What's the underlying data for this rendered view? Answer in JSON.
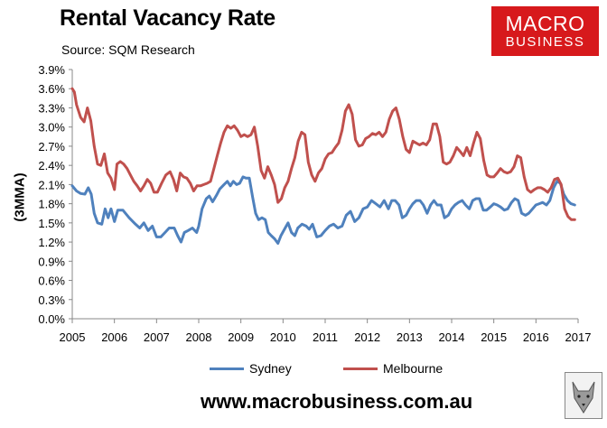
{
  "chart_data": {
    "type": "line",
    "title": "Rental Vacancy Rate",
    "subtitle": "Source: SQM Research",
    "ylabel": "(3MMA)",
    "xlabel": "",
    "ylim": [
      0,
      3.9
    ],
    "yticks": [
      "0.0%",
      "0.3%",
      "0.6%",
      "0.9%",
      "1.2%",
      "1.5%",
      "1.8%",
      "2.1%",
      "2.4%",
      "2.7%",
      "3.0%",
      "3.3%",
      "3.6%",
      "3.9%"
    ],
    "xticks": [
      "2005",
      "2006",
      "2007",
      "2008",
      "2009",
      "2010",
      "2011",
      "2012",
      "2013",
      "2014",
      "2015",
      "2016",
      "2017"
    ],
    "xlim": [
      2005,
      2017
    ],
    "legend_position": "bottom",
    "series": [
      {
        "name": "Sydney",
        "color": "#4f81bd",
        "points": [
          [
            2005.0,
            2.08
          ],
          [
            2005.1,
            2.0
          ],
          [
            2005.2,
            1.96
          ],
          [
            2005.3,
            1.95
          ],
          [
            2005.38,
            2.05
          ],
          [
            2005.45,
            1.95
          ],
          [
            2005.52,
            1.65
          ],
          [
            2005.6,
            1.5
          ],
          [
            2005.7,
            1.48
          ],
          [
            2005.78,
            1.72
          ],
          [
            2005.85,
            1.58
          ],
          [
            2005.92,
            1.72
          ],
          [
            2006.0,
            1.52
          ],
          [
            2006.08,
            1.7
          ],
          [
            2006.2,
            1.7
          ],
          [
            2006.35,
            1.58
          ],
          [
            2006.5,
            1.48
          ],
          [
            2006.6,
            1.42
          ],
          [
            2006.7,
            1.5
          ],
          [
            2006.8,
            1.38
          ],
          [
            2006.9,
            1.45
          ],
          [
            2007.0,
            1.28
          ],
          [
            2007.1,
            1.28
          ],
          [
            2007.2,
            1.35
          ],
          [
            2007.3,
            1.42
          ],
          [
            2007.42,
            1.42
          ],
          [
            2007.5,
            1.3
          ],
          [
            2007.58,
            1.2
          ],
          [
            2007.66,
            1.35
          ],
          [
            2007.75,
            1.38
          ],
          [
            2007.85,
            1.42
          ],
          [
            2007.95,
            1.35
          ],
          [
            2008.0,
            1.45
          ],
          [
            2008.08,
            1.72
          ],
          [
            2008.18,
            1.88
          ],
          [
            2008.25,
            1.92
          ],
          [
            2008.33,
            1.83
          ],
          [
            2008.42,
            1.93
          ],
          [
            2008.5,
            2.03
          ],
          [
            2008.6,
            2.1
          ],
          [
            2008.68,
            2.15
          ],
          [
            2008.75,
            2.08
          ],
          [
            2008.82,
            2.15
          ],
          [
            2008.9,
            2.1
          ],
          [
            2008.97,
            2.12
          ],
          [
            2009.05,
            2.22
          ],
          [
            2009.12,
            2.2
          ],
          [
            2009.2,
            2.2
          ],
          [
            2009.28,
            1.9
          ],
          [
            2009.35,
            1.65
          ],
          [
            2009.42,
            1.55
          ],
          [
            2009.5,
            1.58
          ],
          [
            2009.58,
            1.55
          ],
          [
            2009.65,
            1.35
          ],
          [
            2009.72,
            1.3
          ],
          [
            2009.8,
            1.25
          ],
          [
            2009.88,
            1.18
          ],
          [
            2009.95,
            1.3
          ],
          [
            2010.05,
            1.42
          ],
          [
            2010.12,
            1.5
          ],
          [
            2010.2,
            1.35
          ],
          [
            2010.28,
            1.3
          ],
          [
            2010.35,
            1.42
          ],
          [
            2010.45,
            1.48
          ],
          [
            2010.55,
            1.45
          ],
          [
            2010.62,
            1.4
          ],
          [
            2010.7,
            1.48
          ],
          [
            2010.8,
            1.28
          ],
          [
            2010.9,
            1.3
          ],
          [
            2011.0,
            1.38
          ],
          [
            2011.1,
            1.45
          ],
          [
            2011.2,
            1.48
          ],
          [
            2011.3,
            1.42
          ],
          [
            2011.4,
            1.45
          ],
          [
            2011.5,
            1.62
          ],
          [
            2011.6,
            1.68
          ],
          [
            2011.7,
            1.52
          ],
          [
            2011.8,
            1.58
          ],
          [
            2011.9,
            1.72
          ],
          [
            2012.0,
            1.75
          ],
          [
            2012.1,
            1.85
          ],
          [
            2012.2,
            1.8
          ],
          [
            2012.3,
            1.75
          ],
          [
            2012.4,
            1.85
          ],
          [
            2012.5,
            1.72
          ],
          [
            2012.58,
            1.85
          ],
          [
            2012.66,
            1.85
          ],
          [
            2012.75,
            1.78
          ],
          [
            2012.83,
            1.58
          ],
          [
            2012.92,
            1.62
          ],
          [
            2013.0,
            1.72
          ],
          [
            2013.08,
            1.8
          ],
          [
            2013.16,
            1.85
          ],
          [
            2013.25,
            1.85
          ],
          [
            2013.33,
            1.78
          ],
          [
            2013.42,
            1.65
          ],
          [
            2013.5,
            1.78
          ],
          [
            2013.58,
            1.85
          ],
          [
            2013.66,
            1.78
          ],
          [
            2013.75,
            1.78
          ],
          [
            2013.83,
            1.58
          ],
          [
            2013.92,
            1.62
          ],
          [
            2014.0,
            1.72
          ],
          [
            2014.08,
            1.78
          ],
          [
            2014.16,
            1.82
          ],
          [
            2014.25,
            1.85
          ],
          [
            2014.33,
            1.78
          ],
          [
            2014.42,
            1.72
          ],
          [
            2014.5,
            1.85
          ],
          [
            2014.58,
            1.88
          ],
          [
            2014.66,
            1.88
          ],
          [
            2014.75,
            1.7
          ],
          [
            2014.83,
            1.7
          ],
          [
            2014.92,
            1.75
          ],
          [
            2015.0,
            1.8
          ],
          [
            2015.08,
            1.78
          ],
          [
            2015.16,
            1.75
          ],
          [
            2015.25,
            1.7
          ],
          [
            2015.33,
            1.72
          ],
          [
            2015.42,
            1.82
          ],
          [
            2015.5,
            1.88
          ],
          [
            2015.58,
            1.85
          ],
          [
            2015.66,
            1.65
          ],
          [
            2015.75,
            1.62
          ],
          [
            2015.83,
            1.65
          ],
          [
            2015.92,
            1.72
          ],
          [
            2016.0,
            1.78
          ],
          [
            2016.08,
            1.8
          ],
          [
            2016.16,
            1.82
          ],
          [
            2016.25,
            1.78
          ],
          [
            2016.33,
            1.85
          ],
          [
            2016.42,
            2.05
          ],
          [
            2016.5,
            2.15
          ],
          [
            2016.58,
            2.12
          ],
          [
            2016.66,
            1.95
          ],
          [
            2016.75,
            1.85
          ],
          [
            2016.83,
            1.8
          ],
          [
            2016.92,
            1.78
          ]
        ]
      },
      {
        "name": "Melbourne",
        "color": "#c0504d",
        "points": [
          [
            2005.0,
            3.6
          ],
          [
            2005.05,
            3.55
          ],
          [
            2005.1,
            3.35
          ],
          [
            2005.2,
            3.15
          ],
          [
            2005.28,
            3.08
          ],
          [
            2005.36,
            3.3
          ],
          [
            2005.44,
            3.1
          ],
          [
            2005.52,
            2.7
          ],
          [
            2005.6,
            2.42
          ],
          [
            2005.68,
            2.4
          ],
          [
            2005.76,
            2.58
          ],
          [
            2005.84,
            2.28
          ],
          [
            2005.92,
            2.2
          ],
          [
            2006.0,
            2.02
          ],
          [
            2006.06,
            2.42
          ],
          [
            2006.14,
            2.46
          ],
          [
            2006.22,
            2.42
          ],
          [
            2006.3,
            2.35
          ],
          [
            2006.38,
            2.25
          ],
          [
            2006.46,
            2.15
          ],
          [
            2006.54,
            2.08
          ],
          [
            2006.62,
            2.0
          ],
          [
            2006.7,
            2.08
          ],
          [
            2006.78,
            2.18
          ],
          [
            2006.86,
            2.12
          ],
          [
            2006.94,
            1.98
          ],
          [
            2007.02,
            1.98
          ],
          [
            2007.12,
            2.12
          ],
          [
            2007.22,
            2.25
          ],
          [
            2007.32,
            2.3
          ],
          [
            2007.4,
            2.18
          ],
          [
            2007.48,
            2.0
          ],
          [
            2007.56,
            2.28
          ],
          [
            2007.64,
            2.22
          ],
          [
            2007.72,
            2.2
          ],
          [
            2007.8,
            2.12
          ],
          [
            2007.88,
            2.0
          ],
          [
            2007.96,
            2.08
          ],
          [
            2008.04,
            2.08
          ],
          [
            2008.12,
            2.1
          ],
          [
            2008.2,
            2.12
          ],
          [
            2008.28,
            2.15
          ],
          [
            2008.36,
            2.35
          ],
          [
            2008.44,
            2.55
          ],
          [
            2008.52,
            2.75
          ],
          [
            2008.6,
            2.92
          ],
          [
            2008.68,
            3.02
          ],
          [
            2008.76,
            2.98
          ],
          [
            2008.84,
            3.02
          ],
          [
            2008.92,
            2.95
          ],
          [
            2009.0,
            2.85
          ],
          [
            2009.08,
            2.88
          ],
          [
            2009.16,
            2.85
          ],
          [
            2009.24,
            2.88
          ],
          [
            2009.32,
            3.0
          ],
          [
            2009.4,
            2.7
          ],
          [
            2009.48,
            2.32
          ],
          [
            2009.56,
            2.2
          ],
          [
            2009.64,
            2.38
          ],
          [
            2009.72,
            2.25
          ],
          [
            2009.8,
            2.1
          ],
          [
            2009.88,
            1.82
          ],
          [
            2009.96,
            1.88
          ],
          [
            2010.04,
            2.05
          ],
          [
            2010.12,
            2.15
          ],
          [
            2010.2,
            2.35
          ],
          [
            2010.28,
            2.52
          ],
          [
            2010.36,
            2.78
          ],
          [
            2010.44,
            2.92
          ],
          [
            2010.52,
            2.88
          ],
          [
            2010.6,
            2.45
          ],
          [
            2010.68,
            2.25
          ],
          [
            2010.76,
            2.15
          ],
          [
            2010.84,
            2.28
          ],
          [
            2010.92,
            2.35
          ],
          [
            2011.0,
            2.5
          ],
          [
            2011.08,
            2.58
          ],
          [
            2011.16,
            2.6
          ],
          [
            2011.24,
            2.68
          ],
          [
            2011.32,
            2.75
          ],
          [
            2011.4,
            2.95
          ],
          [
            2011.48,
            3.25
          ],
          [
            2011.56,
            3.35
          ],
          [
            2011.64,
            3.2
          ],
          [
            2011.72,
            2.8
          ],
          [
            2011.8,
            2.7
          ],
          [
            2011.88,
            2.72
          ],
          [
            2011.96,
            2.82
          ],
          [
            2012.04,
            2.85
          ],
          [
            2012.12,
            2.9
          ],
          [
            2012.2,
            2.88
          ],
          [
            2012.28,
            2.92
          ],
          [
            2012.36,
            2.85
          ],
          [
            2012.44,
            2.92
          ],
          [
            2012.52,
            3.12
          ],
          [
            2012.6,
            3.25
          ],
          [
            2012.68,
            3.3
          ],
          [
            2012.76,
            3.12
          ],
          [
            2012.84,
            2.85
          ],
          [
            2012.92,
            2.65
          ],
          [
            2013.0,
            2.6
          ],
          [
            2013.08,
            2.78
          ],
          [
            2013.16,
            2.75
          ],
          [
            2013.24,
            2.72
          ],
          [
            2013.32,
            2.75
          ],
          [
            2013.4,
            2.72
          ],
          [
            2013.48,
            2.8
          ],
          [
            2013.56,
            3.05
          ],
          [
            2013.64,
            3.05
          ],
          [
            2013.72,
            2.85
          ],
          [
            2013.8,
            2.45
          ],
          [
            2013.88,
            2.42
          ],
          [
            2013.96,
            2.45
          ],
          [
            2014.04,
            2.55
          ],
          [
            2014.12,
            2.68
          ],
          [
            2014.2,
            2.62
          ],
          [
            2014.28,
            2.55
          ],
          [
            2014.36,
            2.68
          ],
          [
            2014.44,
            2.55
          ],
          [
            2014.52,
            2.75
          ],
          [
            2014.6,
            2.92
          ],
          [
            2014.68,
            2.82
          ],
          [
            2014.76,
            2.48
          ],
          [
            2014.84,
            2.25
          ],
          [
            2014.92,
            2.22
          ],
          [
            2015.0,
            2.22
          ],
          [
            2015.08,
            2.28
          ],
          [
            2015.16,
            2.35
          ],
          [
            2015.24,
            2.3
          ],
          [
            2015.32,
            2.28
          ],
          [
            2015.4,
            2.3
          ],
          [
            2015.48,
            2.38
          ],
          [
            2015.56,
            2.55
          ],
          [
            2015.64,
            2.52
          ],
          [
            2015.72,
            2.22
          ],
          [
            2015.8,
            2.02
          ],
          [
            2015.88,
            1.98
          ],
          [
            2015.96,
            2.02
          ],
          [
            2016.04,
            2.05
          ],
          [
            2016.12,
            2.05
          ],
          [
            2016.2,
            2.02
          ],
          [
            2016.28,
            1.98
          ],
          [
            2016.36,
            2.05
          ],
          [
            2016.44,
            2.18
          ],
          [
            2016.52,
            2.2
          ],
          [
            2016.6,
            2.1
          ],
          [
            2016.68,
            1.72
          ],
          [
            2016.76,
            1.6
          ],
          [
            2016.84,
            1.55
          ],
          [
            2016.92,
            1.55
          ]
        ]
      }
    ]
  },
  "brand": {
    "line1": "MACRO",
    "line2": "BUSINESS",
    "color": "#d7191c"
  },
  "footer": {
    "url": "www.macrobusiness.com.au",
    "logo_icon": "wolf-icon"
  }
}
